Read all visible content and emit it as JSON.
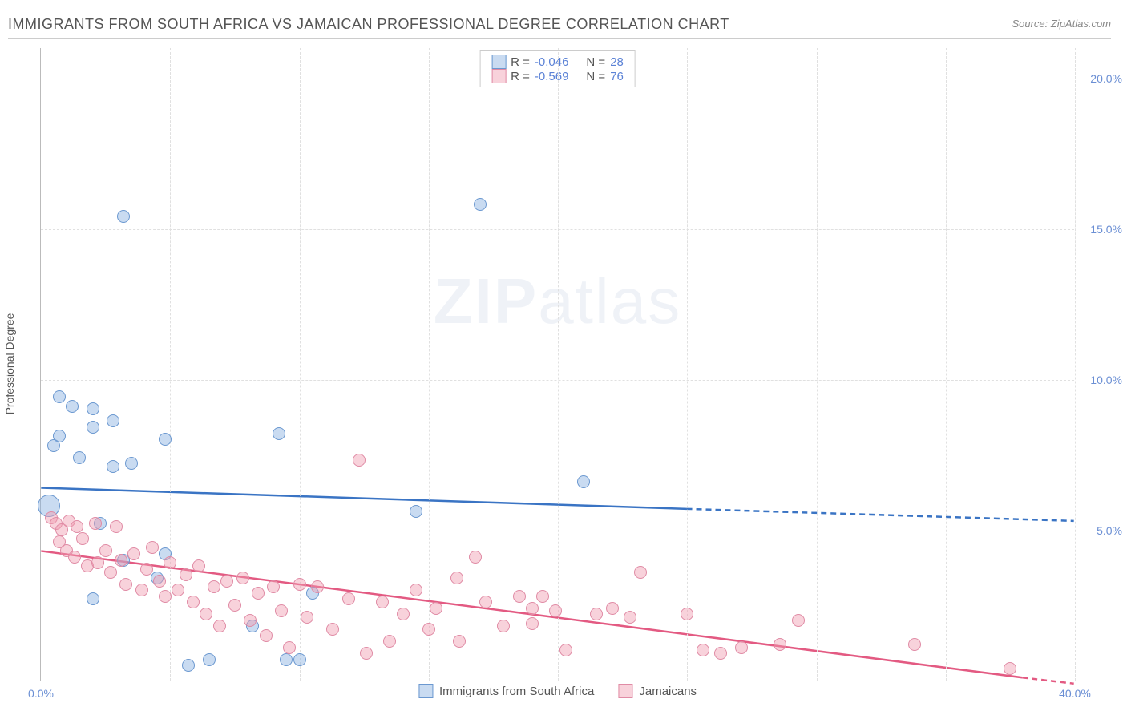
{
  "title": "IMMIGRANTS FROM SOUTH AFRICA VS JAMAICAN PROFESSIONAL DEGREE CORRELATION CHART",
  "source": "Source: ZipAtlas.com",
  "watermark_bold": "ZIP",
  "watermark_rest": "atlas",
  "chart": {
    "type": "scatter",
    "xlim": [
      0,
      40
    ],
    "ylim": [
      0,
      21
    ],
    "xtick_labels": [
      "0.0%",
      "40.0%"
    ],
    "xtick_positions": [
      0,
      40
    ],
    "ytick_labels": [
      "5.0%",
      "10.0%",
      "15.0%",
      "20.0%"
    ],
    "ytick_positions": [
      5,
      10,
      15,
      20
    ],
    "vgrid_positions": [
      5,
      10,
      15,
      20,
      25,
      30,
      35,
      40
    ],
    "ylabel": "Professional Degree",
    "background_color": "#ffffff",
    "grid_color": "#e0e0e0",
    "axis_color": "#bbbbbb",
    "tick_label_color": "#6b8fd4",
    "tick_fontsize": 14,
    "ylabel_fontsize": 14,
    "title_fontsize": 18,
    "title_color": "#555555",
    "marker_default_radius": 8,
    "series": [
      {
        "name": "Immigrants from South Africa",
        "R": "-0.046",
        "N": "28",
        "fill_color": "rgba(135,175,225,0.45)",
        "stroke_color": "#6b98d0",
        "line_color": "#3a74c4",
        "regression": {
          "x1": 0,
          "y1": 6.4,
          "x2_solid": 25,
          "y2_solid": 5.7,
          "x2": 40,
          "y2": 5.3
        },
        "points": [
          {
            "x": 0.3,
            "y": 5.8,
            "r": 14
          },
          {
            "x": 0.7,
            "y": 9.4
          },
          {
            "x": 1.2,
            "y": 9.1
          },
          {
            "x": 0.7,
            "y": 8.1
          },
          {
            "x": 0.5,
            "y": 7.8
          },
          {
            "x": 2.0,
            "y": 9.0
          },
          {
            "x": 2.0,
            "y": 8.4
          },
          {
            "x": 1.5,
            "y": 7.4
          },
          {
            "x": 2.8,
            "y": 8.6
          },
          {
            "x": 2.8,
            "y": 7.1
          },
          {
            "x": 3.5,
            "y": 7.2
          },
          {
            "x": 4.8,
            "y": 8.0
          },
          {
            "x": 2.3,
            "y": 5.2
          },
          {
            "x": 2.0,
            "y": 2.7
          },
          {
            "x": 4.5,
            "y": 3.4
          },
          {
            "x": 3.2,
            "y": 4.0
          },
          {
            "x": 4.8,
            "y": 4.2
          },
          {
            "x": 5.7,
            "y": 0.5
          },
          {
            "x": 6.5,
            "y": 0.7
          },
          {
            "x": 8.2,
            "y": 1.8
          },
          {
            "x": 9.2,
            "y": 8.2
          },
          {
            "x": 9.5,
            "y": 0.7
          },
          {
            "x": 10.0,
            "y": 0.7
          },
          {
            "x": 10.5,
            "y": 2.9
          },
          {
            "x": 14.5,
            "y": 5.6
          },
          {
            "x": 17.0,
            "y": 15.8
          },
          {
            "x": 3.2,
            "y": 15.4
          },
          {
            "x": 21.0,
            "y": 6.6
          }
        ]
      },
      {
        "name": "Jamaicans",
        "R": "-0.569",
        "N": "76",
        "fill_color": "rgba(240,155,175,0.45)",
        "stroke_color": "#e08ba5",
        "line_color": "#e35a82",
        "regression": {
          "x1": 0,
          "y1": 4.3,
          "x2_solid": 38,
          "y2_solid": 0.1,
          "x2": 40,
          "y2": -0.1
        },
        "points": [
          {
            "x": 0.4,
            "y": 5.4
          },
          {
            "x": 0.6,
            "y": 5.2
          },
          {
            "x": 0.8,
            "y": 5.0
          },
          {
            "x": 1.1,
            "y": 5.3
          },
          {
            "x": 1.4,
            "y": 5.1
          },
          {
            "x": 0.7,
            "y": 4.6
          },
          {
            "x": 1.0,
            "y": 4.3
          },
          {
            "x": 1.3,
            "y": 4.1
          },
          {
            "x": 1.6,
            "y": 4.7
          },
          {
            "x": 1.8,
            "y": 3.8
          },
          {
            "x": 2.1,
            "y": 5.2
          },
          {
            "x": 2.2,
            "y": 3.9
          },
          {
            "x": 2.5,
            "y": 4.3
          },
          {
            "x": 2.7,
            "y": 3.6
          },
          {
            "x": 2.9,
            "y": 5.1
          },
          {
            "x": 3.1,
            "y": 4.0
          },
          {
            "x": 3.3,
            "y": 3.2
          },
          {
            "x": 3.6,
            "y": 4.2
          },
          {
            "x": 3.9,
            "y": 3.0
          },
          {
            "x": 4.1,
            "y": 3.7
          },
          {
            "x": 4.3,
            "y": 4.4
          },
          {
            "x": 4.6,
            "y": 3.3
          },
          {
            "x": 4.8,
            "y": 2.8
          },
          {
            "x": 5.0,
            "y": 3.9
          },
          {
            "x": 5.3,
            "y": 3.0
          },
          {
            "x": 5.6,
            "y": 3.5
          },
          {
            "x": 5.9,
            "y": 2.6
          },
          {
            "x": 6.1,
            "y": 3.8
          },
          {
            "x": 6.4,
            "y": 2.2
          },
          {
            "x": 6.7,
            "y": 3.1
          },
          {
            "x": 6.9,
            "y": 1.8
          },
          {
            "x": 7.2,
            "y": 3.3
          },
          {
            "x": 7.5,
            "y": 2.5
          },
          {
            "x": 7.8,
            "y": 3.4
          },
          {
            "x": 8.1,
            "y": 2.0
          },
          {
            "x": 8.4,
            "y": 2.9
          },
          {
            "x": 8.7,
            "y": 1.5
          },
          {
            "x": 9.0,
            "y": 3.1
          },
          {
            "x": 9.3,
            "y": 2.3
          },
          {
            "x": 9.6,
            "y": 1.1
          },
          {
            "x": 10.0,
            "y": 3.2
          },
          {
            "x": 10.3,
            "y": 2.1
          },
          {
            "x": 10.7,
            "y": 3.1
          },
          {
            "x": 11.3,
            "y": 1.7
          },
          {
            "x": 11.9,
            "y": 2.7
          },
          {
            "x": 12.3,
            "y": 7.3
          },
          {
            "x": 12.6,
            "y": 0.9
          },
          {
            "x": 13.2,
            "y": 2.6
          },
          {
            "x": 13.5,
            "y": 1.3
          },
          {
            "x": 14.0,
            "y": 2.2
          },
          {
            "x": 14.5,
            "y": 3.0
          },
          {
            "x": 15.0,
            "y": 1.7
          },
          {
            "x": 15.3,
            "y": 2.4
          },
          {
            "x": 16.1,
            "y": 3.4
          },
          {
            "x": 16.2,
            "y": 1.3
          },
          {
            "x": 16.8,
            "y": 4.1
          },
          {
            "x": 17.2,
            "y": 2.6
          },
          {
            "x": 17.9,
            "y": 1.8
          },
          {
            "x": 18.5,
            "y": 2.8
          },
          {
            "x": 19.0,
            "y": 2.4
          },
          {
            "x": 19.0,
            "y": 1.9
          },
          {
            "x": 19.4,
            "y": 2.8
          },
          {
            "x": 19.9,
            "y": 2.3
          },
          {
            "x": 20.3,
            "y": 1.0
          },
          {
            "x": 21.5,
            "y": 2.2
          },
          {
            "x": 22.1,
            "y": 2.4
          },
          {
            "x": 22.8,
            "y": 2.1
          },
          {
            "x": 23.2,
            "y": 3.6
          },
          {
            "x": 25.0,
            "y": 2.2
          },
          {
            "x": 25.6,
            "y": 1.0
          },
          {
            "x": 26.3,
            "y": 0.9
          },
          {
            "x": 27.1,
            "y": 1.1
          },
          {
            "x": 28.6,
            "y": 1.2
          },
          {
            "x": 29.3,
            "y": 2.0
          },
          {
            "x": 33.8,
            "y": 1.2
          },
          {
            "x": 37.5,
            "y": 0.4
          }
        ]
      }
    ]
  }
}
